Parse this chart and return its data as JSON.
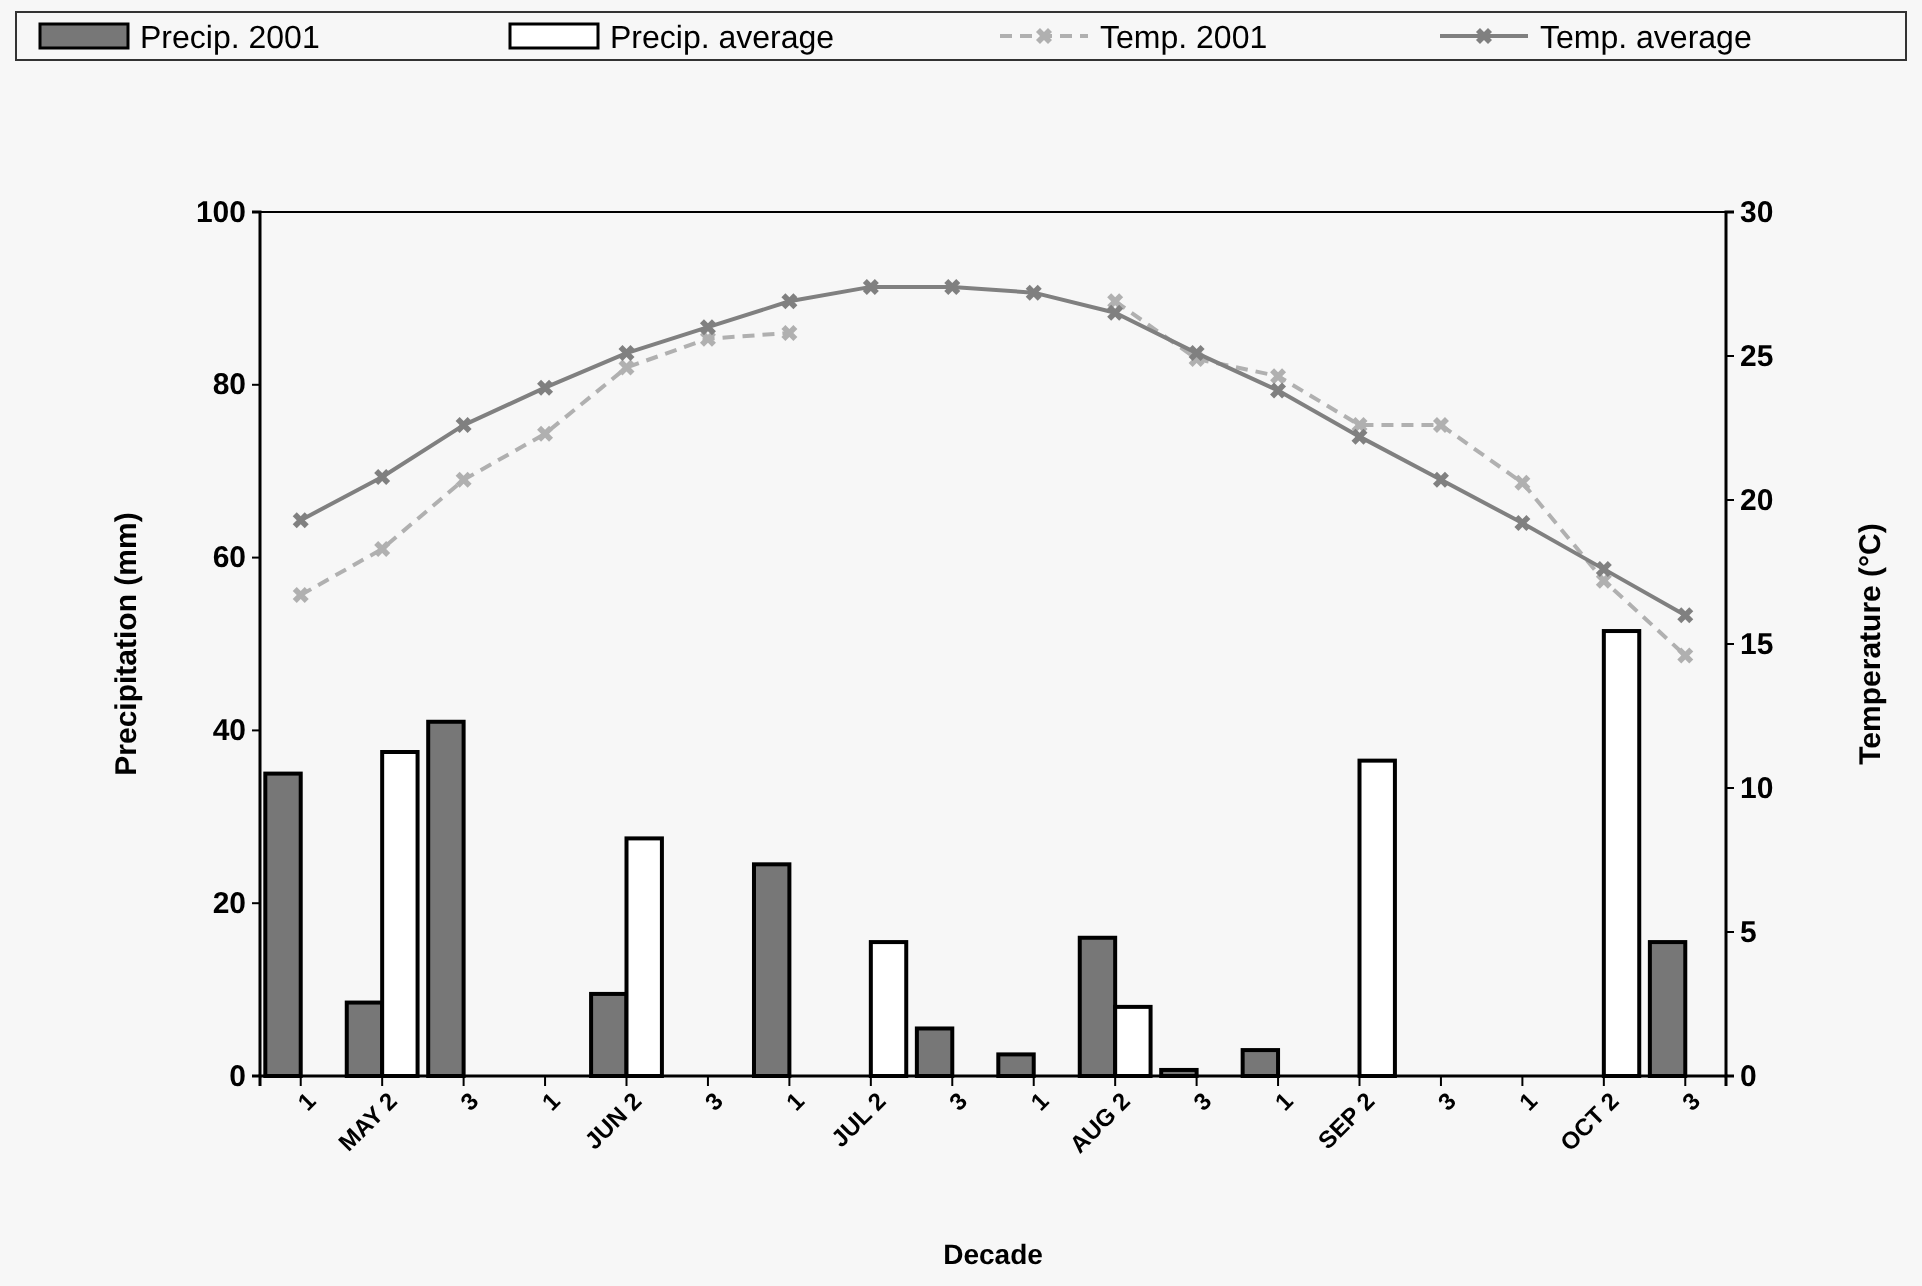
{
  "chart_data": {
    "type": "bar",
    "xlabel": "Decade",
    "ylabel": "Precipitation (mm)",
    "y2label": "Temperature (°C)",
    "categories": [
      "1",
      "MAY 2",
      "3",
      "1",
      "JUN 2",
      "3",
      "1",
      "JUL 2",
      "3",
      "1",
      "AUG 2",
      "3",
      "1",
      "SEP 2",
      "3",
      "1",
      "OCT 2",
      "3"
    ],
    "series": [
      {
        "name": "Precip. 2001",
        "color": "#777777",
        "values": [
          35,
          8.5,
          41,
          0,
          9.5,
          0,
          24.5,
          0,
          5.5,
          2.5,
          16,
          0.7,
          3,
          0,
          0,
          0,
          0,
          15.5
        ]
      },
      {
        "name": "Precip. average",
        "color": "#ffffff",
        "values": [
          0,
          37.5,
          0,
          0,
          27.5,
          0,
          0,
          15.5,
          0,
          0,
          8,
          0,
          0,
          36.5,
          0,
          0,
          51.5,
          0
        ]
      },
      {
        "name": "Temp. 2001",
        "type": "line",
        "axis": "y2",
        "color": "#b0b0b0",
        "line_style": "dashed",
        "values": [
          16.7,
          18.3,
          20.7,
          22.3,
          24.6,
          25.6,
          25.8,
          null,
          null,
          null,
          26.9,
          24.9,
          24.3,
          22.6,
          22.6,
          20.6,
          17.2,
          14.6
        ]
      },
      {
        "name": "Temp. average",
        "type": "line",
        "axis": "y2",
        "color": "#808080",
        "line_style": "solid",
        "values": [
          19.3,
          20.8,
          22.6,
          23.9,
          25.1,
          26,
          26.9,
          27.4,
          27.4,
          27.2,
          26.5,
          25.1,
          23.8,
          22.2,
          20.7,
          19.2,
          17.6,
          16
        ]
      }
    ],
    "ylim": [
      0,
      100
    ],
    "yticks": [
      0,
      20,
      40,
      60,
      80,
      100
    ],
    "y2lim": [
      0,
      30
    ],
    "y2ticks": [
      0,
      5,
      10,
      15,
      20,
      25,
      30
    ],
    "grid": false,
    "legend": "top",
    "marker": "cross"
  }
}
